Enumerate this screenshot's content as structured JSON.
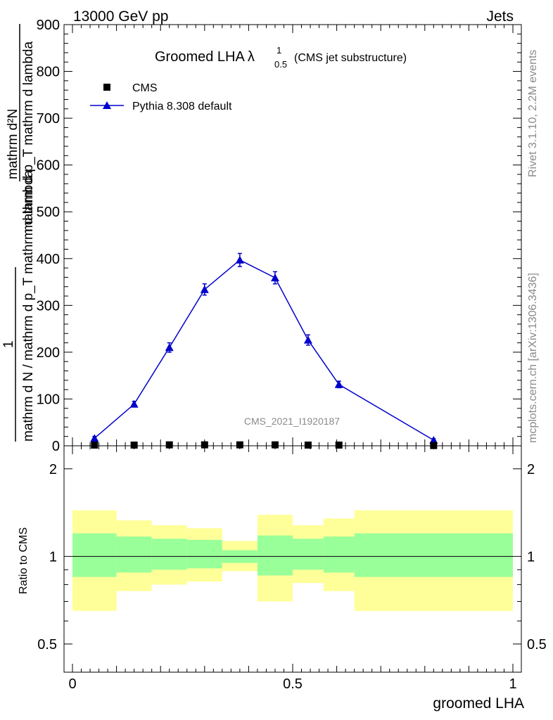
{
  "header": {
    "energy": "13000 GeV pp",
    "category": "Jets"
  },
  "side": {
    "rivet": "Rivet 3.1.10,  2.2M events",
    "mcplots": "mcplots.cern.ch [arXiv:1306.3436]"
  },
  "main_plot": {
    "title_main": "Groomed LHA",
    "title_sym": "λ",
    "title_sup": "1",
    "title_sub": "0.5",
    "title_note": "(CMS jet substructure)",
    "watermark": "CMS_2021_I1920187",
    "ylabel_top": "mathrm d²N",
    "ylabel_top_mid": "mathrm d p_T mathrm d lambda",
    "ylabel_one": "1",
    "ylabel_bottom": "mathrm d N / mathrm d p_T mathrm d lambda",
    "ytick_labels": [
      "0",
      "100",
      "200",
      "300",
      "400",
      "500",
      "600",
      "700",
      "800",
      "900"
    ],
    "legend": {
      "data_label": "CMS",
      "mc_label": "Pythia 8.308 default"
    }
  },
  "ratio_plot": {
    "ylabel": "Ratio to CMS",
    "ytick_labels": [
      "0.5",
      "1",
      "2"
    ],
    "xtick_labels": [
      "0",
      "0.5",
      "1"
    ],
    "xlabel": "groomed LHA"
  },
  "chart_data": {
    "type": "line",
    "xlabel": "groomed LHA",
    "ylim": [
      0,
      900
    ],
    "xlim": [
      0,
      1
    ],
    "colors": {
      "mc": "#0000cc",
      "data": "#000000",
      "band_inner": "#99ff99",
      "band_outer": "#ffff99"
    },
    "bin_edges": [
      0,
      0.1,
      0.18,
      0.26,
      0.34,
      0.42,
      0.5,
      0.57,
      0.64,
      1.0
    ],
    "series": [
      {
        "name": "CMS",
        "x": [
          0.05,
          0.14,
          0.22,
          0.3,
          0.38,
          0.46,
          0.535,
          0.605,
          0.82
        ],
        "values": [
          1.5,
          1.5,
          2,
          2,
          2,
          2,
          1.5,
          1.5,
          0.5
        ]
      },
      {
        "name": "Pythia 8.308 default",
        "x": [
          0.05,
          0.14,
          0.22,
          0.3,
          0.38,
          0.46,
          0.535,
          0.605,
          0.82
        ],
        "values": [
          16,
          89,
          210,
          334,
          397,
          359,
          226,
          131,
          12
        ],
        "errors": [
          4,
          6,
          10,
          12,
          14,
          13,
          11,
          7,
          3
        ]
      }
    ],
    "ratio": {
      "ylim": [
        0.4,
        2.4
      ],
      "log_scale": true,
      "reference": 1,
      "bins": [
        {
          "lo": 0.0,
          "hi": 0.1,
          "inner": [
            0.85,
            1.2
          ],
          "outer": [
            0.65,
            1.44
          ]
        },
        {
          "lo": 0.1,
          "hi": 0.18,
          "inner": [
            0.88,
            1.17
          ],
          "outer": [
            0.76,
            1.33
          ]
        },
        {
          "lo": 0.18,
          "hi": 0.26,
          "inner": [
            0.9,
            1.15
          ],
          "outer": [
            0.8,
            1.28
          ]
        },
        {
          "lo": 0.26,
          "hi": 0.34,
          "inner": [
            0.91,
            1.14
          ],
          "outer": [
            0.82,
            1.25
          ]
        },
        {
          "lo": 0.34,
          "hi": 0.42,
          "inner": [
            0.95,
            1.05
          ],
          "outer": [
            0.89,
            1.13
          ]
        },
        {
          "lo": 0.42,
          "hi": 0.5,
          "inner": [
            0.86,
            1.18
          ],
          "outer": [
            0.7,
            1.39
          ]
        },
        {
          "lo": 0.5,
          "hi": 0.57,
          "inner": [
            0.9,
            1.15
          ],
          "outer": [
            0.81,
            1.28
          ]
        },
        {
          "lo": 0.57,
          "hi": 0.64,
          "inner": [
            0.88,
            1.17
          ],
          "outer": [
            0.76,
            1.35
          ]
        },
        {
          "lo": 0.64,
          "hi": 1.0,
          "inner": [
            0.85,
            1.2
          ],
          "outer": [
            0.65,
            1.44
          ]
        }
      ]
    }
  }
}
